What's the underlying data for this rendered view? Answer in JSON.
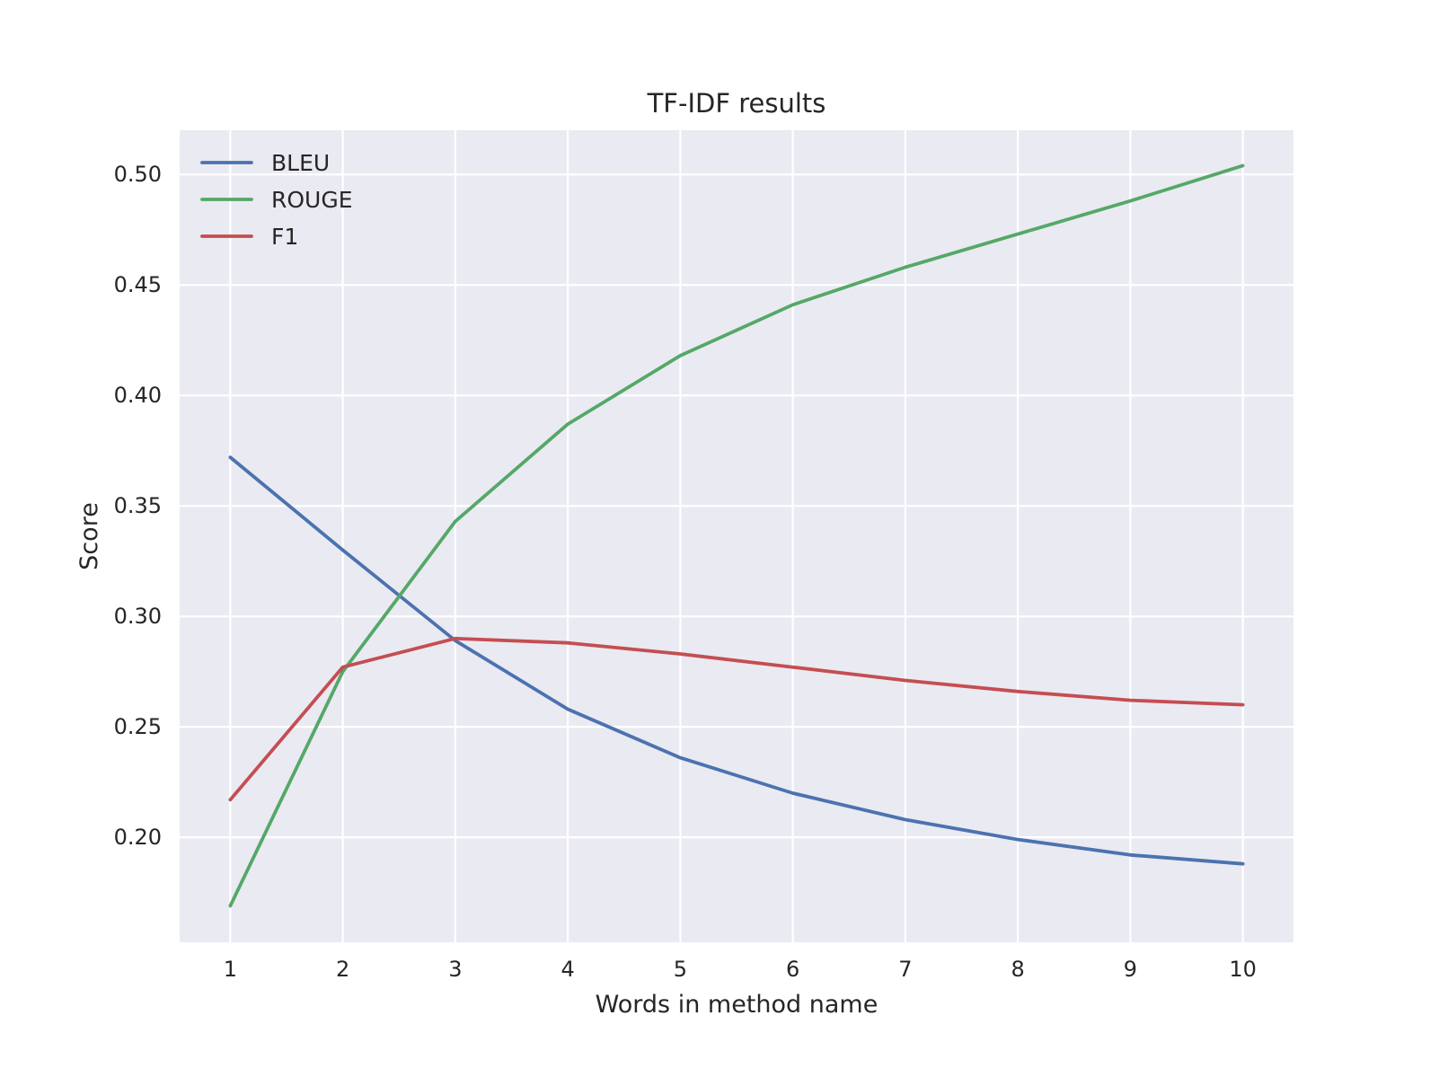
{
  "chart_data": {
    "type": "line",
    "title": "TF-IDF results",
    "xlabel": "Words in method name",
    "ylabel": "Score",
    "x": [
      1,
      2,
      3,
      4,
      5,
      6,
      7,
      8,
      9,
      10
    ],
    "xlim": [
      0.55,
      10.45
    ],
    "ylim": [
      0.1525,
      0.52
    ],
    "yticks": [
      0.2,
      0.25,
      0.3,
      0.35,
      0.4,
      0.45,
      0.5
    ],
    "ytick_labels": [
      "0.20",
      "0.25",
      "0.30",
      "0.35",
      "0.40",
      "0.45",
      "0.50"
    ],
    "xtick_labels": [
      "1",
      "2",
      "3",
      "4",
      "5",
      "6",
      "7",
      "8",
      "9",
      "10"
    ],
    "grid": true,
    "legend_position": "upper left",
    "series": [
      {
        "name": "BLEU",
        "color": "#4c72b0",
        "values": [
          0.372,
          0.33,
          0.289,
          0.258,
          0.236,
          0.22,
          0.208,
          0.199,
          0.192,
          0.188
        ]
      },
      {
        "name": "ROUGE",
        "color": "#55a868",
        "values": [
          0.169,
          0.275,
          0.343,
          0.387,
          0.418,
          0.441,
          0.458,
          0.473,
          0.488,
          0.504
        ]
      },
      {
        "name": "F1",
        "color": "#c44e52",
        "values": [
          0.217,
          0.277,
          0.29,
          0.288,
          0.283,
          0.277,
          0.271,
          0.266,
          0.262,
          0.26
        ]
      }
    ]
  }
}
